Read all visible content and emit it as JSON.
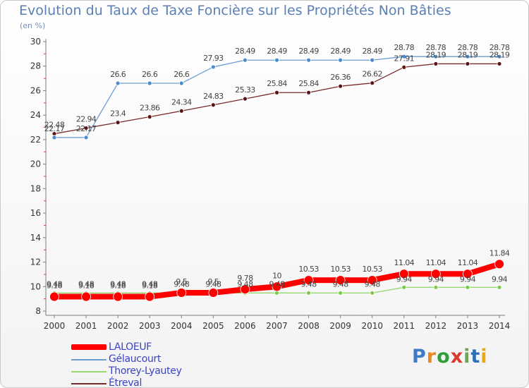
{
  "title": "Evolution du Taux de Taxe Foncière sur les Propriétés Non Bâties",
  "unit_label": "(en %)",
  "logo": {
    "text": "Proxiti",
    "letter_colors": [
      "#3e7cc4",
      "#e88a1e",
      "#2f9e3b",
      "#d73a2f",
      "#6aa84f",
      "#2f6fb8",
      "#e6a817"
    ]
  },
  "colors": {
    "LALOEUF": "#ff0000",
    "Gélaucourt": "#6b9fd3",
    "Thorey-Lyautey": "#98d870",
    "Étreval": "#7a2a2a",
    "axis_text": "#333333",
    "value_text": "#444444"
  },
  "chart_data": {
    "type": "line",
    "title": "Evolution du Taux de Taxe Foncière sur les Propriétés Non Bâties",
    "ylabel": "(en %)",
    "xlabel": "",
    "x": [
      "2000",
      "2001",
      "2002",
      "2003",
      "2004",
      "2005",
      "2006",
      "2007",
      "2008",
      "2009",
      "2010",
      "2011",
      "2012",
      "2013",
      "2014"
    ],
    "ylim": [
      8,
      30
    ],
    "yticks": [
      "8",
      "10",
      "12",
      "14",
      "16",
      "18",
      "20",
      "22",
      "24",
      "26",
      "28",
      "30"
    ],
    "grid": false,
    "legend_position": "bottom-left",
    "series": [
      {
        "name": "LALOEUF",
        "values": [
          9.18,
          9.18,
          9.18,
          9.18,
          9.5,
          9.5,
          9.78,
          10,
          10.53,
          10.53,
          10.53,
          11.04,
          11.04,
          11.04,
          11.84
        ],
        "labels": [
          "9.18",
          "9.18",
          "9.18",
          "9.18",
          "9.5",
          "9.5",
          "9.78",
          "10",
          "10.53",
          "10.53",
          "10.53",
          "11.04",
          "11.04",
          "11.04",
          "11.84"
        ]
      },
      {
        "name": "Gélaucourt",
        "values": [
          22.17,
          22.17,
          26.6,
          26.6,
          26.6,
          27.93,
          28.49,
          28.49,
          28.49,
          28.49,
          28.49,
          28.78,
          28.78,
          28.78,
          28.78
        ],
        "labels": [
          "22.17",
          "22.17",
          "26.6",
          "26.6",
          "26.6",
          "27.93",
          "28.49",
          "28.49",
          "28.49",
          "28.49",
          "28.49",
          "28.78",
          "28.78",
          "28.78",
          "28.78"
        ]
      },
      {
        "name": "Thorey-Lyautey",
        "values": [
          9.48,
          9.48,
          9.48,
          9.48,
          9.48,
          9.48,
          9.48,
          9.48,
          9.48,
          9.48,
          9.48,
          9.94,
          9.94,
          9.94,
          9.94
        ],
        "labels": [
          "9.48",
          "9.48",
          "9.48",
          "9.48",
          "9.48",
          "9.48",
          "9.48",
          "9.48",
          "9.48",
          "9.48",
          "9.48",
          "9.94",
          "9.94",
          "9.94",
          "9.94"
        ]
      },
      {
        "name": "Étreval",
        "values": [
          22.48,
          22.94,
          23.4,
          23.86,
          24.34,
          24.83,
          25.33,
          25.84,
          25.84,
          26.36,
          26.62,
          27.91,
          28.19,
          28.19,
          28.19
        ],
        "labels": [
          "22.48",
          "22.94",
          "23.4",
          "23.86",
          "24.34",
          "24.83",
          "25.33",
          "25.84",
          "25.84",
          "26.36",
          "26.62",
          "27.91",
          "28.19",
          "28.19",
          "28.19"
        ]
      }
    ]
  }
}
